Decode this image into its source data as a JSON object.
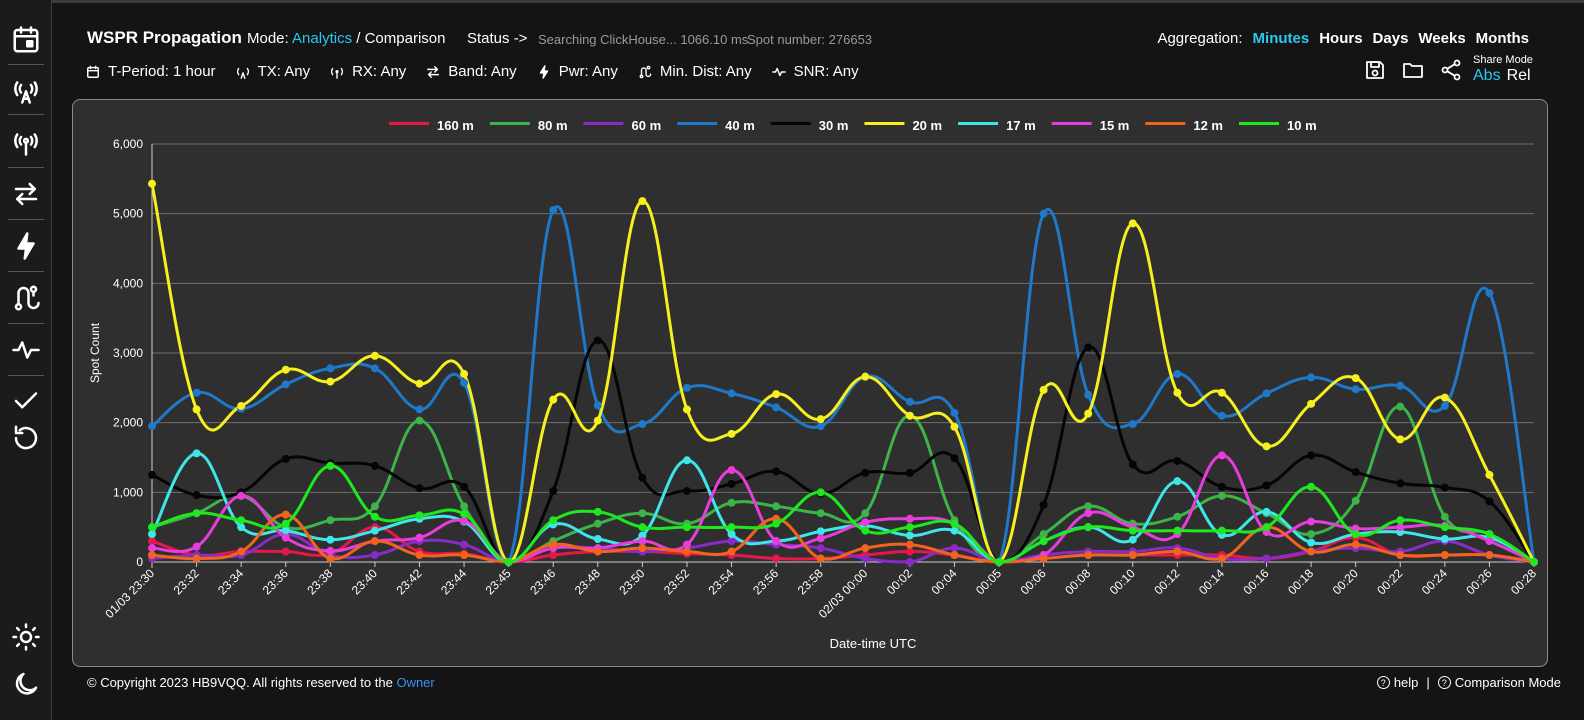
{
  "app": {
    "title": "WSPR Propagation"
  },
  "mode": {
    "label": "Mode:",
    "active": "Analytics",
    "separator": " / ",
    "other": "Comparison"
  },
  "status": {
    "label": "Status ->",
    "text": "Searching ClickHouse... 1066.10 ms",
    "spot": "Spot number: 276653"
  },
  "aggregation": {
    "label": "Aggregation:",
    "options": [
      "Minutes",
      "Hours",
      "Days",
      "Weeks",
      "Months"
    ],
    "active": "Minutes"
  },
  "filters": {
    "period": "T-Period: 1 hour",
    "tx": "TX: Any",
    "rx": "RX: Any",
    "band": "Band: Any",
    "pwr": "Pwr: Any",
    "dist": "Min. Dist: Any",
    "snr": "SNR: Any"
  },
  "share": {
    "label": "Share Mode",
    "abs": "Abs",
    "rel": "Rel",
    "active": "Abs"
  },
  "footer": {
    "copyright": "© Copyright 2023 HB9VQQ. All rights reserved to the ",
    "owner": "Owner",
    "help": "help",
    "divider": "|",
    "comparison": "Comparison Mode"
  },
  "sidebar_icons": [
    "calendar-icon",
    "tx-antenna-icon",
    "rx-antenna-icon",
    "band-swap-icon",
    "power-bolt-icon",
    "distance-route-icon",
    "snr-wave-icon",
    "check-icon",
    "reset-icon",
    "light-mode-icon",
    "dark-mode-icon"
  ],
  "colors": {
    "accent": "#29c9f0",
    "link": "#3d8ef0",
    "panel": "#2f2f2f",
    "grid": "#6a6a6a"
  },
  "chart_data": {
    "type": "line",
    "xlabel": "Date-time UTC",
    "ylabel": "Spot Count",
    "ylim": [
      0,
      6000
    ],
    "yticks": [
      0,
      1000,
      2000,
      3000,
      4000,
      5000,
      6000
    ],
    "ytick_labels": [
      "0",
      "1,000",
      "2,000",
      "3,000",
      "4,000",
      "5,000",
      "6,000"
    ],
    "grid": true,
    "legend_position": "top",
    "categories": [
      "01/03 23:30",
      "23:32",
      "23:34",
      "23:36",
      "23:38",
      "23:40",
      "23:42",
      "23:44",
      "23:45",
      "23:46",
      "23:48",
      "23:50",
      "23:52",
      "23:54",
      "23:56",
      "23:58",
      "02/03 00:00",
      "00:02",
      "00:04",
      "00:05",
      "00:06",
      "00:08",
      "00:10",
      "00:12",
      "00:14",
      "00:16",
      "00:18",
      "00:20",
      "00:22",
      "00:24",
      "00:26",
      "00:28"
    ],
    "series": [
      {
        "name": "160 m",
        "color": "#e8174a",
        "values": [
          300,
          100,
          150,
          150,
          120,
          500,
          150,
          120,
          0,
          100,
          150,
          150,
          120,
          100,
          50,
          50,
          100,
          150,
          100,
          0,
          50,
          100,
          100,
          100,
          100,
          50,
          150,
          350,
          100,
          100,
          100,
          0
        ]
      },
      {
        "name": "80 m",
        "color": "#3cb448",
        "values": [
          500,
          700,
          950,
          500,
          600,
          800,
          2030,
          800,
          0,
          300,
          550,
          700,
          550,
          850,
          800,
          700,
          700,
          2100,
          600,
          0,
          400,
          800,
          550,
          650,
          950,
          700,
          400,
          880,
          2230,
          650,
          400,
          0
        ]
      },
      {
        "name": "60 m",
        "color": "#8a2bc8",
        "values": [
          50,
          100,
          100,
          400,
          100,
          100,
          300,
          250,
          0,
          200,
          200,
          150,
          200,
          300,
          250,
          200,
          50,
          0,
          200,
          0,
          100,
          150,
          150,
          200,
          50,
          50,
          150,
          200,
          150,
          300,
          100,
          0
        ]
      },
      {
        "name": "40 m",
        "color": "#1f78c8",
        "values": [
          1950,
          2430,
          2200,
          2550,
          2780,
          2780,
          2190,
          2570,
          0,
          5050,
          2250,
          1980,
          2500,
          2420,
          2220,
          1950,
          2660,
          2300,
          2140,
          0,
          5000,
          2400,
          1980,
          2700,
          2100,
          2420,
          2650,
          2480,
          2530,
          2240,
          3860,
          0
        ]
      },
      {
        "name": "30 m",
        "color": "#050505",
        "values": [
          1250,
          960,
          1000,
          1480,
          1420,
          1380,
          1060,
          1080,
          0,
          1020,
          3180,
          1210,
          1020,
          1120,
          1300,
          980,
          1280,
          1280,
          1490,
          0,
          820,
          3080,
          1400,
          1450,
          1080,
          1100,
          1530,
          1290,
          1130,
          1070,
          870,
          0
        ]
      },
      {
        "name": "20 m",
        "color": "#f5f01e",
        "values": [
          5430,
          2190,
          2240,
          2760,
          2590,
          2960,
          2560,
          2700,
          0,
          2330,
          2030,
          5180,
          2190,
          1840,
          2410,
          2050,
          2660,
          2100,
          1940,
          0,
          2470,
          2130,
          4860,
          2430,
          2430,
          1660,
          2270,
          2640,
          1760,
          2360,
          1250,
          0
        ]
      },
      {
        "name": "17 m",
        "color": "#3ee6e8",
        "values": [
          400,
          1560,
          500,
          450,
          320,
          450,
          620,
          580,
          0,
          540,
          330,
          380,
          1460,
          400,
          300,
          440,
          520,
          380,
          450,
          0,
          300,
          500,
          320,
          1160,
          390,
          720,
          280,
          400,
          430,
          330,
          350,
          0
        ]
      },
      {
        "name": "15 m",
        "color": "#e83cdc",
        "values": [
          200,
          220,
          950,
          350,
          160,
          300,
          350,
          590,
          0,
          200,
          200,
          300,
          250,
          1320,
          300,
          340,
          570,
          620,
          550,
          0,
          100,
          700,
          500,
          400,
          1530,
          430,
          580,
          480,
          500,
          520,
          300,
          0
        ]
      },
      {
        "name": "12 m",
        "color": "#f0641e",
        "values": [
          100,
          50,
          150,
          680,
          50,
          300,
          100,
          100,
          0,
          250,
          150,
          200,
          150,
          150,
          620,
          50,
          200,
          250,
          100,
          0,
          50,
          100,
          100,
          150,
          50,
          500,
          150,
          250,
          100,
          100,
          100,
          0
        ]
      },
      {
        "name": "10 m",
        "color": "#1ee81e",
        "values": [
          500,
          700,
          600,
          550,
          1380,
          650,
          670,
          690,
          0,
          600,
          720,
          500,
          500,
          500,
          550,
          1000,
          450,
          500,
          550,
          0,
          300,
          500,
          450,
          450,
          450,
          500,
          1080,
          400,
          600,
          500,
          400,
          0
        ]
      }
    ]
  }
}
